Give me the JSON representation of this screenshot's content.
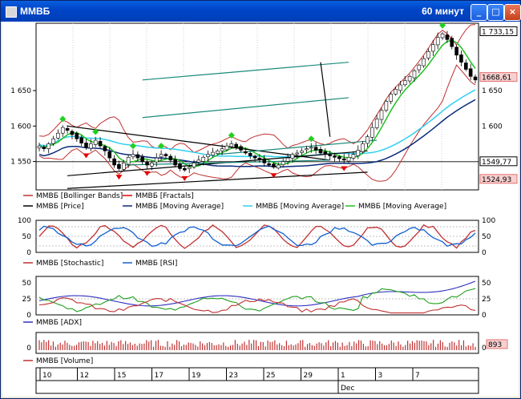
{
  "window": {
    "title": "ММВБ",
    "interval": "60 минут",
    "buttons": {
      "minimize": "_",
      "maximize": "□",
      "close": "×"
    }
  },
  "chart_data": [
    {
      "panel": "price",
      "type": "candlestick",
      "ylim": [
        1510,
        1745
      ],
      "y_ticks": [
        1600,
        1650,
        1550
      ],
      "y_tick_labels": [
        "1 600",
        "1 650",
        "1 550"
      ],
      "value_labels": [
        {
          "value": 1733.15,
          "text": "1 733,15",
          "color": "#000000"
        },
        {
          "value": 1668.61,
          "text": "1668,61",
          "color": "#e87070"
        },
        {
          "value": 1549.77,
          "text": "1549,77",
          "color": "#000000"
        },
        {
          "value": 1524.93,
          "text": "1524,93",
          "color": "#e87070"
        }
      ],
      "close": [
        1572,
        1568,
        1575,
        1582,
        1590,
        1598,
        1594,
        1588,
        1582,
        1576,
        1570,
        1575,
        1580,
        1572,
        1565,
        1555,
        1545,
        1540,
        1548,
        1556,
        1560,
        1555,
        1550,
        1545,
        1548,
        1555,
        1560,
        1558,
        1552,
        1545,
        1540,
        1538,
        1542,
        1548,
        1552,
        1556,
        1560,
        1563,
        1565,
        1568,
        1572,
        1575,
        1570,
        1566,
        1562,
        1558,
        1555,
        1552,
        1548,
        1545,
        1542,
        1545,
        1550,
        1555,
        1560,
        1562,
        1565,
        1568,
        1570,
        1566,
        1562,
        1560,
        1558,
        1556,
        1554,
        1552,
        1556,
        1560,
        1566,
        1575,
        1585,
        1598,
        1610,
        1622,
        1635,
        1645,
        1652,
        1658,
        1664,
        1670,
        1678,
        1686,
        1695,
        1705,
        1715,
        1725,
        1730,
        1722,
        1712,
        1700,
        1690,
        1680,
        1670,
        1665
      ],
      "series": [
        {
          "name": "ММВБ [Bollinger Bands]",
          "color": "#c03030"
        },
        {
          "name": "ММВБ [Fractals]",
          "color": "#e00000"
        },
        {
          "name": "ММВБ [Price]",
          "color": "#000000"
        },
        {
          "name": "ММВБ [Moving Average]",
          "color": "#0a2a7a"
        },
        {
          "name": "ММВБ [Moving Average]",
          "color": "#30d0f0"
        },
        {
          "name": "ММВБ [Moving Average]",
          "color": "#20c020"
        }
      ]
    },
    {
      "panel": "oscillators",
      "type": "line",
      "ylim": [
        0,
        100
      ],
      "y_ticks": [
        0,
        50,
        100
      ],
      "series": [
        {
          "name": "ММВБ [Stochastic]",
          "color": "#c03030"
        },
        {
          "name": "ММВБ [RSI]",
          "color": "#1060d0"
        }
      ]
    },
    {
      "panel": "adx",
      "type": "line",
      "ylim": [
        0,
        60
      ],
      "y_ticks": [
        0,
        25,
        50
      ],
      "series": [
        {
          "name": "ММВБ [ADX]",
          "color": "#3030c0"
        }
      ]
    },
    {
      "panel": "volume",
      "type": "bar",
      "y_ticks": [
        0
      ],
      "value_label": "893",
      "series": [
        {
          "name": "ММВБ [Volume]",
          "color": "#c03030"
        }
      ]
    }
  ],
  "xaxis": {
    "day_labels": [
      "10",
      "12",
      "15",
      "17",
      "19",
      "23",
      "25",
      "29",
      "1",
      "3",
      "7"
    ],
    "month_label": "Dec"
  }
}
